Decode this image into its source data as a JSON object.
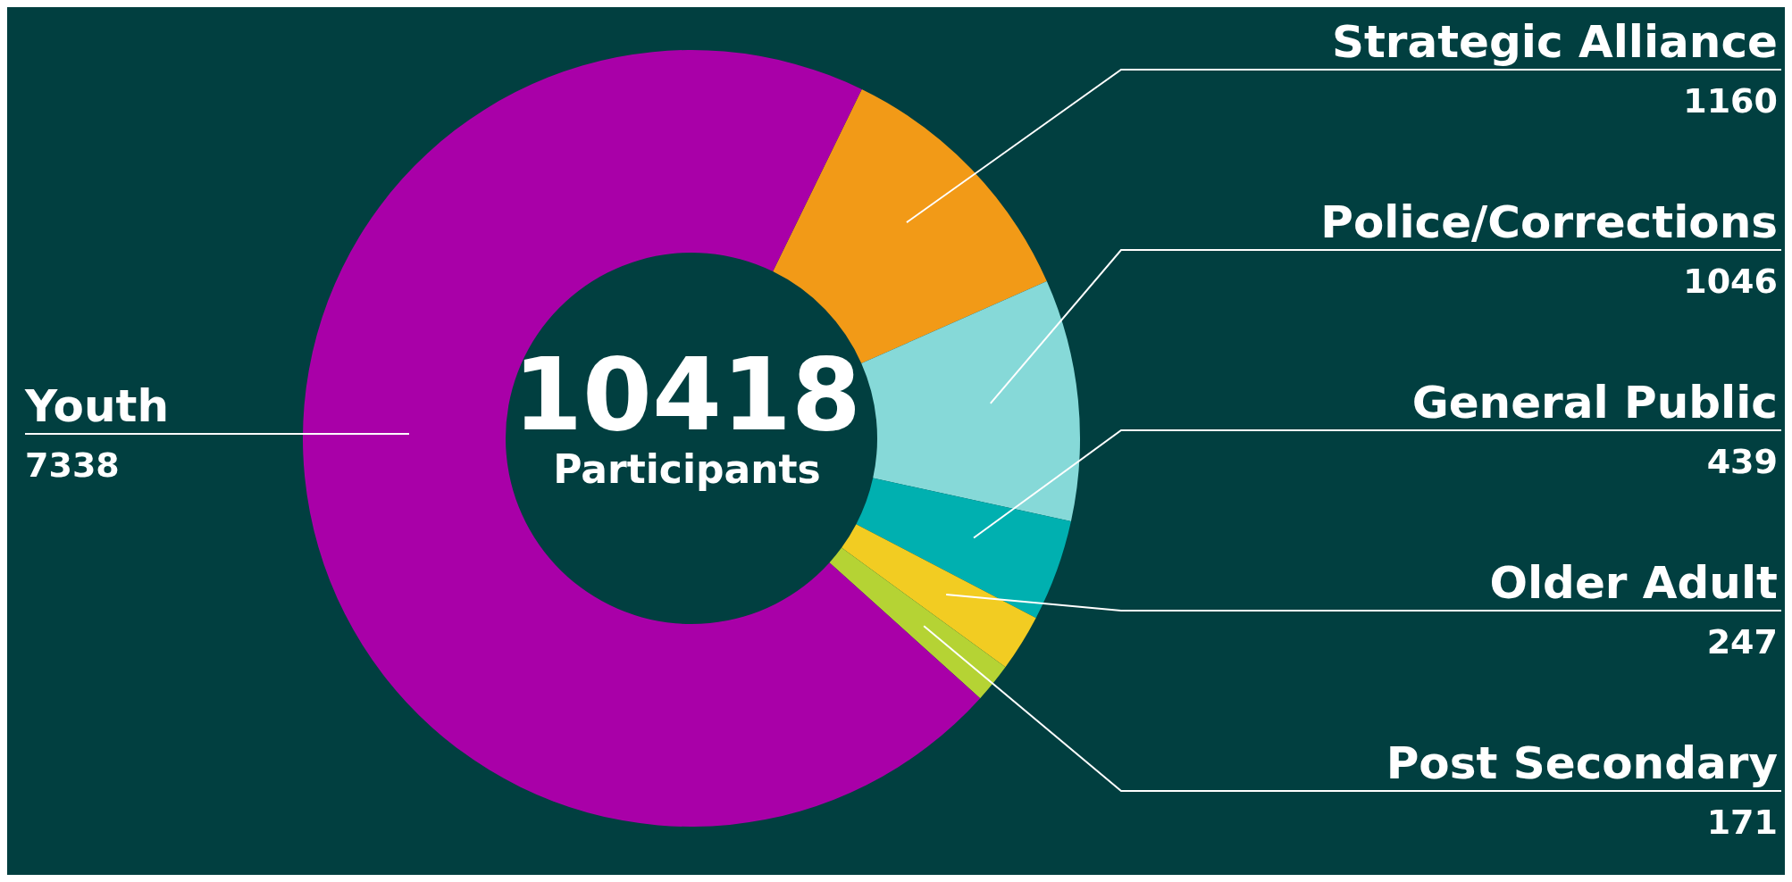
{
  "chart_data": {
    "type": "donut",
    "categories": [
      "Strategic Alliance",
      "Police/Corrections",
      "General Public",
      "Older Adult",
      "Post Secondary",
      "Youth"
    ],
    "values": [
      1160,
      1046,
      439,
      247,
      171,
      7338
    ],
    "colors": [
      "#f29a17",
      "#86d9d8",
      "#00b0b0",
      "#f2cc22",
      "#b5d334",
      "#a900a8"
    ],
    "data_labels": true,
    "annotations": [
      "10418",
      "Participants"
    ]
  }
}
